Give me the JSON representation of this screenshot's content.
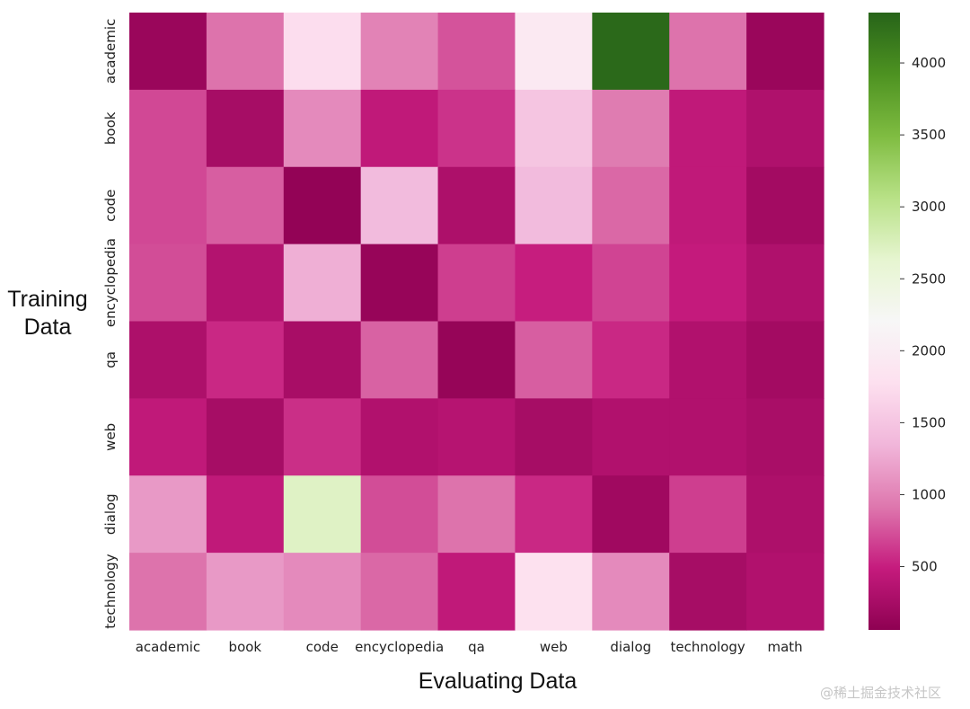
{
  "chart_data": {
    "type": "heatmap",
    "ylabel": "Training\nData",
    "xlabel": "Evaluating Data",
    "rows": [
      "academic",
      "book",
      "code",
      "encyclopedia",
      "qa",
      "web",
      "dialog",
      "technology"
    ],
    "columns": [
      "academic",
      "book",
      "code",
      "encyclopedia",
      "qa",
      "web",
      "dialog",
      "technology",
      "math"
    ],
    "values": [
      [
        150,
        900,
        1750,
        1000,
        750,
        1950,
        4300,
        900,
        150
      ],
      [
        700,
        250,
        1050,
        450,
        600,
        1500,
        950,
        450,
        320
      ],
      [
        700,
        800,
        100,
        1400,
        300,
        1400,
        850,
        450,
        220
      ],
      [
        720,
        350,
        1300,
        130,
        650,
        500,
        680,
        480,
        320
      ],
      [
        300,
        550,
        260,
        820,
        120,
        800,
        550,
        330,
        220
      ],
      [
        450,
        250,
        580,
        330,
        370,
        250,
        330,
        330,
        270
      ],
      [
        1150,
        450,
        2700,
        720,
        900,
        550,
        200,
        650,
        300
      ],
      [
        900,
        1150,
        1050,
        850,
        450,
        1800,
        1050,
        250,
        330
      ]
    ],
    "colormap": "PiYG",
    "colorbar": {
      "min": 60,
      "max": 4350,
      "ticks": [
        500,
        1000,
        1500,
        2000,
        2500,
        3000,
        3500,
        4000
      ]
    }
  },
  "watermark": "@稀土掘金技术社区"
}
